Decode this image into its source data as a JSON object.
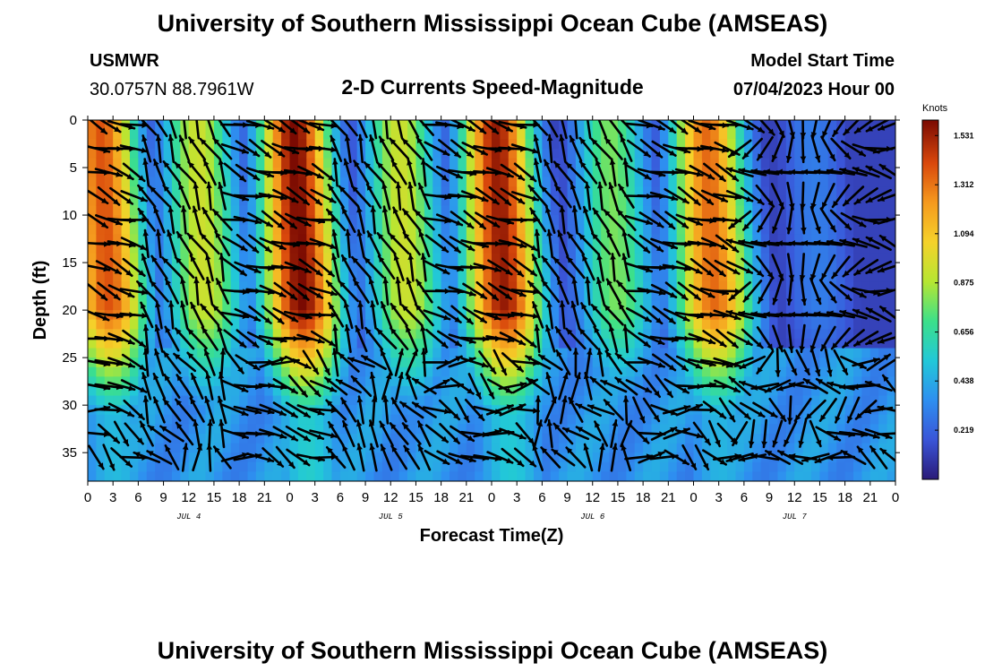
{
  "header": {
    "title": "University of Southern Mississippi Ocean Cube (AMSEAS)",
    "station": "USMWR",
    "coords": "30.0757N  88.7961W",
    "plot_title": "2-D Currents Speed-Magnitude",
    "model_start_label": "Model Start Time",
    "model_start_value": "07/04/2023 Hour 00"
  },
  "footer": {
    "title": "University of Southern Mississippi Ocean Cube (AMSEAS)"
  },
  "chart_data": {
    "type": "heatmap",
    "title": "2-D Currents Speed-Magnitude",
    "xlabel": "Forecast Time(Z)",
    "ylabel": "Depth (ft)",
    "x_tick_labels": [
      "0",
      "3",
      "6",
      "9",
      "12",
      "15",
      "18",
      "21",
      "0",
      "3",
      "6",
      "9",
      "12",
      "15",
      "18",
      "21",
      "0",
      "3",
      "6",
      "9",
      "12",
      "15",
      "18",
      "21",
      "0",
      "3",
      "6",
      "9",
      "12",
      "15",
      "18",
      "21",
      "0"
    ],
    "x_range_hours": [
      0,
      96
    ],
    "y_range_ft": [
      0,
      38
    ],
    "y_ticks": [
      0,
      5,
      10,
      15,
      20,
      25,
      30,
      35
    ],
    "y_tick_labels": [
      "0",
      "5",
      "10",
      "15",
      "20",
      "25",
      "30",
      "35"
    ],
    "date_labels": [
      {
        "label": "JUL 4",
        "hour": 12
      },
      {
        "label": "JUL 5",
        "hour": 36
      },
      {
        "label": "JUL 6",
        "hour": 60
      },
      {
        "label": "JUL 7",
        "hour": 84
      }
    ],
    "colorbar": {
      "unit": "Knots",
      "min": 0,
      "max": 1.6,
      "ticks": [
        0.219,
        0.438,
        0.656,
        0.875,
        1.094,
        1.312,
        1.531
      ],
      "tick_labels": [
        "0.219",
        "0.438",
        "0.656",
        "0.875",
        "1.094",
        "1.312",
        "1.531"
      ],
      "colors": [
        "#2a1a78",
        "#3a55d8",
        "#2e8ff0",
        "#22c8d8",
        "#3ce08a",
        "#b6e632",
        "#f5d22a",
        "#f59a1e",
        "#d9480c",
        "#7a0a02"
      ]
    },
    "speed_peaks": [
      {
        "center_hour": 1.5,
        "speed": 1.4
      },
      {
        "center_hour": 13,
        "speed": 0.95
      },
      {
        "center_hour": 24.5,
        "speed": 1.6
      },
      {
        "center_hour": 37,
        "speed": 0.95
      },
      {
        "center_hour": 48.5,
        "speed": 1.55
      },
      {
        "center_hour": 62,
        "speed": 0.8
      },
      {
        "center_hour": 73.5,
        "speed": 1.35
      },
      {
        "center_hour": 86,
        "speed": 0.3
      }
    ],
    "vector_grid": {
      "time_step_hours": 1.5,
      "depth_step_ft": 2.5
    },
    "direction_phase": [
      {
        "start_hour": 0,
        "end_hour": 6,
        "direction": "to SE (ebb)"
      },
      {
        "start_hour": 6,
        "end_hour": 17,
        "direction": "to NW (flood)"
      },
      {
        "start_hour": 17,
        "end_hour": 29,
        "direction": "to SE (ebb)"
      },
      {
        "start_hour": 29,
        "end_hour": 41,
        "direction": "to NW (flood)"
      },
      {
        "start_hour": 41,
        "end_hour": 53,
        "direction": "to SE (ebb)"
      },
      {
        "start_hour": 53,
        "end_hour": 65,
        "direction": "to NW (flood)"
      },
      {
        "start_hour": 65,
        "end_hour": 77,
        "direction": "to SE (ebb)"
      },
      {
        "start_hour": 77,
        "end_hour": 96,
        "direction": "mixed / weak"
      }
    ]
  }
}
